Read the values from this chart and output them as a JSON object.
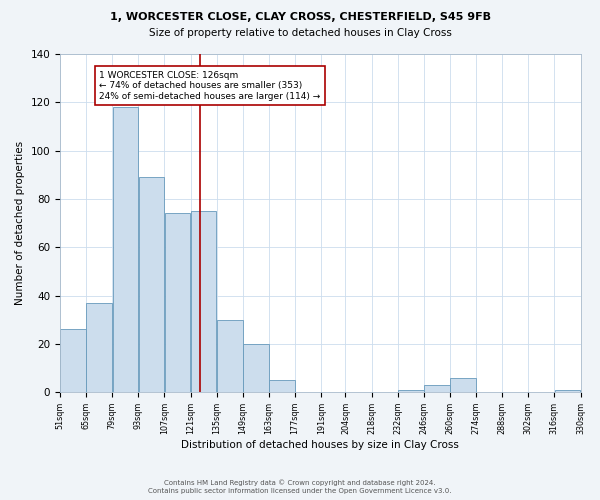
{
  "title1": "1, WORCESTER CLOSE, CLAY CROSS, CHESTERFIELD, S45 9FB",
  "title2": "Size of property relative to detached houses in Clay Cross",
  "xlabel": "Distribution of detached houses by size in Clay Cross",
  "ylabel": "Number of detached properties",
  "bar_edges": [
    51,
    65,
    79,
    93,
    107,
    121,
    135,
    149,
    163,
    177,
    191,
    204,
    218,
    232,
    246,
    260,
    274,
    288,
    302,
    316,
    330
  ],
  "bar_heights": [
    26,
    37,
    118,
    89,
    74,
    75,
    30,
    20,
    5,
    0,
    0,
    0,
    0,
    1,
    3,
    6,
    0,
    0,
    0,
    1
  ],
  "bar_color": "#ccdded",
  "bar_edge_color": "#6699bb",
  "vline_x": 126,
  "vline_color": "#aa0000",
  "annotation_text": "1 WORCESTER CLOSE: 126sqm\n← 74% of detached houses are smaller (353)\n24% of semi-detached houses are larger (114) →",
  "annotation_box_edge_color": "#aa0000",
  "annotation_box_face_color": "#ffffff",
  "ylim": [
    0,
    140
  ],
  "yticks": [
    0,
    20,
    40,
    60,
    80,
    100,
    120,
    140
  ],
  "tick_labels": [
    "51sqm",
    "65sqm",
    "79sqm",
    "93sqm",
    "107sqm",
    "121sqm",
    "135sqm",
    "149sqm",
    "163sqm",
    "177sqm",
    "191sqm",
    "204sqm",
    "218sqm",
    "232sqm",
    "246sqm",
    "260sqm",
    "274sqm",
    "288sqm",
    "302sqm",
    "316sqm",
    "330sqm"
  ],
  "footnote1": "Contains HM Land Registry data © Crown copyright and database right 2024.",
  "footnote2": "Contains public sector information licensed under the Open Government Licence v3.0.",
  "bg_color": "#f0f4f8",
  "plot_bg_color": "#ffffff"
}
